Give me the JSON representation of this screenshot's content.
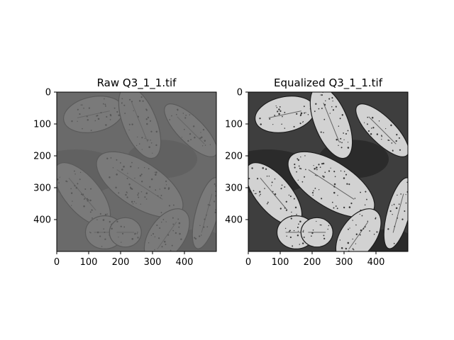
{
  "chart_data": [
    {
      "type": "image",
      "title": "Raw Q3_1_1.tif",
      "image_size": [
        500,
        500
      ],
      "xlim": [
        0,
        500
      ],
      "ylim": [
        500,
        0
      ],
      "xticks": [
        0,
        100,
        200,
        300,
        400
      ],
      "yticks": [
        0,
        100,
        200,
        300,
        400
      ],
      "colormap": "gray",
      "rendering": "low-contrast grayscale micrograph of pollen grains",
      "palette": {
        "bg": "#6a6a6a",
        "grain": "#7a7a7a",
        "dots": "#585858",
        "shade": "#5a5a5a"
      }
    },
    {
      "type": "image",
      "title": "Equalized Q3_1_1.tif",
      "image_size": [
        500,
        500
      ],
      "xlim": [
        0,
        500
      ],
      "ylim": [
        500,
        0
      ],
      "xticks": [
        0,
        100,
        200,
        300,
        400
      ],
      "yticks": [
        0,
        100,
        200,
        300,
        400
      ],
      "colormap": "gray",
      "rendering": "histogram-equalized grayscale micrograph of pollen grains",
      "palette": {
        "bg": "#3e3e3e",
        "grain": "#d2d2d2",
        "dots": "#383838",
        "shade": "#1c1c1c"
      }
    }
  ]
}
